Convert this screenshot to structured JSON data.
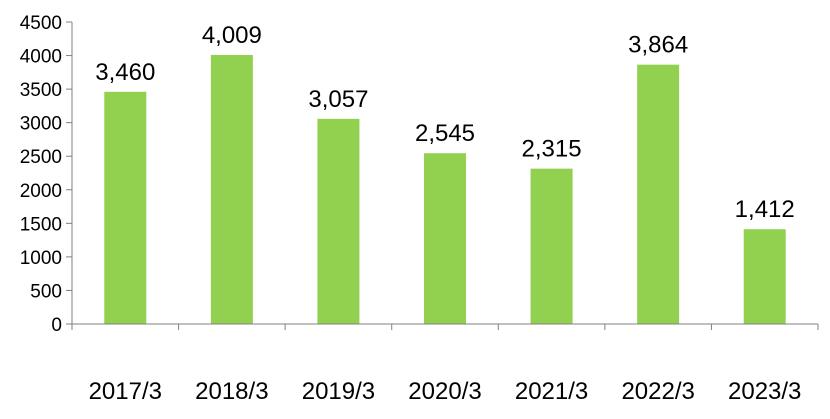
{
  "chart_data": {
    "type": "bar",
    "categories": [
      "2017/3",
      "2018/3",
      "2019/3",
      "2020/3",
      "2021/3",
      "2022/3",
      "2023/3"
    ],
    "values": [
      3460,
      4009,
      3057,
      2545,
      2315,
      3864,
      1412
    ],
    "data_labels": [
      "3,460",
      "4,009",
      "3,057",
      "2,545",
      "2,315",
      "3,864",
      "1,412"
    ],
    "ylim": [
      0,
      4500
    ],
    "yticks": [
      0,
      500,
      1000,
      1500,
      2000,
      2500,
      3000,
      3500,
      4000,
      4500
    ],
    "grid": false,
    "legend": "none",
    "bar_color": "#92d050",
    "title": "",
    "xlabel": "",
    "ylabel": ""
  }
}
